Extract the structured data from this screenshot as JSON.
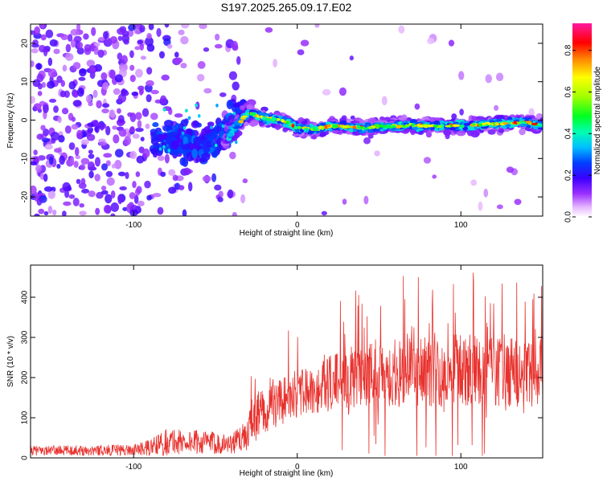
{
  "chart_data": [
    {
      "type": "heatmap",
      "title": "S197.2025.265.09.17.E02",
      "xlabel": "Height of straight line (km)",
      "ylabel": "Frequency (Hz)",
      "xlim": [
        -163,
        150
      ],
      "ylim": [
        -25,
        25
      ],
      "xticks": [
        -100,
        0,
        100
      ],
      "yticks": [
        -20,
        -10,
        0,
        10,
        20
      ],
      "colorbar": {
        "label": "Normalized spectral amplitude",
        "range": [
          0.0,
          0.93
        ],
        "ticks": [
          0.0,
          0.2,
          0.4,
          0.6,
          0.8
        ]
      },
      "ridge": {
        "description": "spectral peak track",
        "x": [
          -50,
          -40,
          -30,
          -20,
          -10,
          0,
          10,
          20,
          40,
          60,
          80,
          100,
          120,
          140,
          150
        ],
        "y": [
          -8,
          -3,
          2,
          0.5,
          0,
          -2,
          -2.5,
          -1.5,
          -2,
          -1.5,
          -1.5,
          -1.5,
          -1,
          -0.5,
          -1.5
        ]
      }
    },
    {
      "type": "line",
      "xlabel": "Height of straight line (km)",
      "ylabel": "SNR (10 * v/v)",
      "xlim": [
        -163,
        150
      ],
      "ylim": [
        0,
        480
      ],
      "xticks": [
        -100,
        0,
        100
      ],
      "yticks": [
        0,
        100,
        200,
        300,
        400
      ],
      "series": [
        {
          "name": "SNR",
          "color": "#e8322e",
          "envelope": {
            "x": [
              -163,
              -100,
              -90,
              -80,
              -60,
              -40,
              -30,
              -28,
              -20,
              -10,
              0,
              10,
              20,
              30,
              40,
              60,
              80,
              100,
              120,
              130,
              140,
              150
            ],
            "baseline": [
              18,
              20,
              25,
              40,
              40,
              35,
              60,
              90,
              120,
              140,
              160,
              170,
              185,
              200,
              210,
              210,
              215,
              220,
              215,
              215,
              210,
              215
            ],
            "spread": [
              12,
              14,
              20,
              35,
              30,
              25,
              40,
              60,
              60,
              60,
              60,
              60,
              70,
              80,
              80,
              85,
              90,
              90,
              85,
              90,
              85,
              85
            ]
          }
        }
      ]
    }
  ]
}
